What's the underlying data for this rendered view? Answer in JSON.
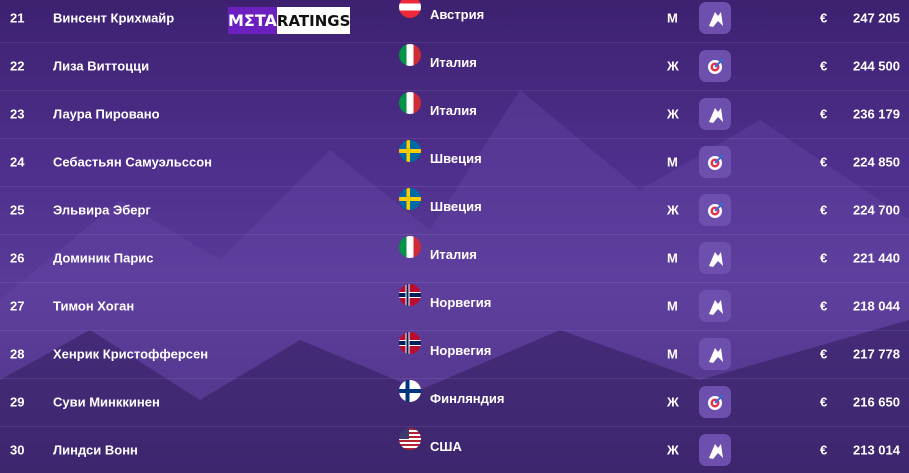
{
  "logo": {
    "left": "MΣTA",
    "right": "RATINGS"
  },
  "table": {
    "rows": [
      {
        "rank": "21",
        "name": "Винсент Крихмайр",
        "country": "Австрия",
        "gender": "М",
        "currency": "€",
        "prize": "247 205"
      },
      {
        "rank": "22",
        "name": "Лиза Виттоцци",
        "country": "Италия",
        "gender": "Ж",
        "currency": "€",
        "prize": "244 500"
      },
      {
        "rank": "23",
        "name": "Лаура Пировано",
        "country": "Италия",
        "gender": "Ж",
        "currency": "€",
        "prize": "236 179"
      },
      {
        "rank": "24",
        "name": "Себастьян Самуэльссон",
        "country": "Швеция",
        "gender": "М",
        "currency": "€",
        "prize": "224 850"
      },
      {
        "rank": "25",
        "name": "Эльвира Эберг",
        "country": "Швеция",
        "gender": "Ж",
        "currency": "€",
        "prize": "224 700"
      },
      {
        "rank": "26",
        "name": "Доминик Парис",
        "country": "Италия",
        "gender": "М",
        "currency": "€",
        "prize": "221 440"
      },
      {
        "rank": "27",
        "name": "Тимон Хоган",
        "country": "Норвегия",
        "gender": "М",
        "currency": "€",
        "prize": "218 044"
      },
      {
        "rank": "28",
        "name": "Хенрик Кристофферсен",
        "country": "Норвегия",
        "gender": "М",
        "currency": "€",
        "prize": "217 778"
      },
      {
        "rank": "29",
        "name": "Суви Минккинен",
        "country": "Финляндия",
        "gender": "Ж",
        "currency": "€",
        "prize": "216 650"
      },
      {
        "rank": "30",
        "name": "Линдси Вонн",
        "country": "США",
        "gender": "Ж",
        "currency": "€",
        "prize": "213 014"
      }
    ]
  }
}
